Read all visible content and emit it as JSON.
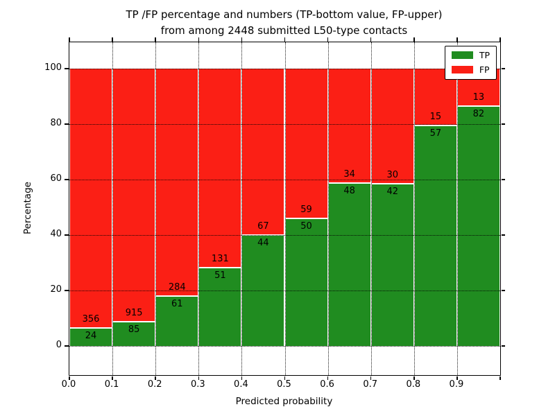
{
  "chart_data": {
    "type": "bar",
    "stacked": true,
    "title_line1": "TP /FP percentage and numbers (TP-bottom value, FP-upper)",
    "title_line2": "from among 2448 submitted L50-type contacts",
    "total_submitted": 2448,
    "xlabel": "Predicted probability",
    "ylabel": "Percentage",
    "categories": [
      "0.0",
      "0.1",
      "0.2",
      "0.3",
      "0.4",
      "0.5",
      "0.6",
      "0.7",
      "0.8",
      "0.9"
    ],
    "y_ticks": [
      0,
      20,
      40,
      60,
      80,
      100
    ],
    "ylim": [
      -10.5,
      109.5
    ],
    "xlim": [
      0.0,
      1.0
    ],
    "grid": "dotted",
    "legend_position": "upper right",
    "bar_unit": "percent of bin total (TP% + FP% = 100)",
    "series": [
      {
        "name": "TP",
        "color": "#208c20",
        "values": [
          24,
          85,
          61,
          51,
          44,
          50,
          48,
          42,
          57,
          82
        ]
      },
      {
        "name": "FP",
        "color": "#fb1f15",
        "values": [
          356,
          915,
          284,
          131,
          67,
          59,
          34,
          30,
          15,
          13
        ]
      }
    ],
    "tp_percentages": [
      6.3,
      8.5,
      17.7,
      28.0,
      39.6,
      45.9,
      58.5,
      58.3,
      79.2,
      86.3
    ],
    "frame_color": "#000000",
    "grid_color": "#000000"
  }
}
